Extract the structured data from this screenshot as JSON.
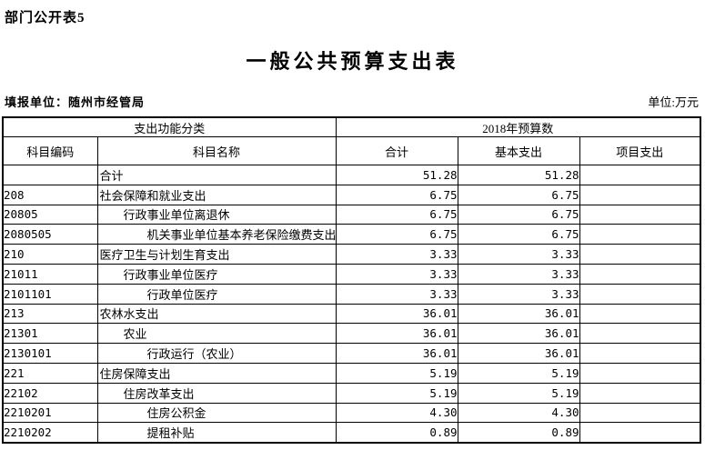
{
  "page": {
    "corner_note": "部门公开表5",
    "title": "一般公共预算支出表",
    "reporting_unit": "填报单位：随州市经管局",
    "unit_note": "单位:万元"
  },
  "table": {
    "header_groups": [
      {
        "label": "支出功能分类",
        "colspan": 2
      },
      {
        "label": "2018年预算数",
        "colspan": 3
      }
    ],
    "columns": [
      "科目编码",
      "科目名称",
      "合计",
      "基本支出",
      "项目支出"
    ],
    "rows": [
      {
        "code": "",
        "name": "合计",
        "indent": 0,
        "total": "51.28",
        "basic": "51.28",
        "project": ""
      },
      {
        "code": "208",
        "name": "社会保障和就业支出",
        "indent": 0,
        "total": "6.75",
        "basic": "6.75",
        "project": ""
      },
      {
        "code": "20805",
        "name": "行政事业单位离退休",
        "indent": 1,
        "total": "6.75",
        "basic": "6.75",
        "project": ""
      },
      {
        "code": "2080505",
        "name": "机关事业单位基本养老保险缴费支出",
        "indent": 2,
        "total": "6.75",
        "basic": "6.75",
        "project": ""
      },
      {
        "code": "210",
        "name": "医疗卫生与计划生育支出",
        "indent": 0,
        "total": "3.33",
        "basic": "3.33",
        "project": ""
      },
      {
        "code": "21011",
        "name": "行政事业单位医疗",
        "indent": 1,
        "total": "3.33",
        "basic": "3.33",
        "project": ""
      },
      {
        "code": "2101101",
        "name": "行政单位医疗",
        "indent": 2,
        "total": "3.33",
        "basic": "3.33",
        "project": ""
      },
      {
        "code": "213",
        "name": "农林水支出",
        "indent": 0,
        "total": "36.01",
        "basic": "36.01",
        "project": ""
      },
      {
        "code": "21301",
        "name": "农业",
        "indent": 1,
        "total": "36.01",
        "basic": "36.01",
        "project": ""
      },
      {
        "code": "2130101",
        "name": "行政运行（农业）",
        "indent": 2,
        "total": "36.01",
        "basic": "36.01",
        "project": ""
      },
      {
        "code": "221",
        "name": "住房保障支出",
        "indent": 0,
        "total": "5.19",
        "basic": "5.19",
        "project": ""
      },
      {
        "code": "22102",
        "name": "住房改革支出",
        "indent": 1,
        "total": "5.19",
        "basic": "5.19",
        "project": ""
      },
      {
        "code": "2210201",
        "name": "住房公积金",
        "indent": 2,
        "total": "4.30",
        "basic": "4.30",
        "project": ""
      },
      {
        "code": "2210202",
        "name": "提租补贴",
        "indent": 2,
        "total": "0.89",
        "basic": "0.89",
        "project": ""
      }
    ]
  }
}
